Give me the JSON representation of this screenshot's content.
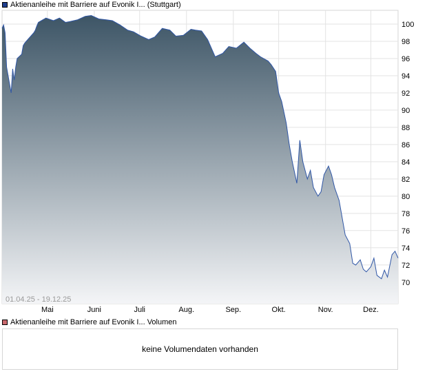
{
  "price_legend": {
    "label": "Aktienanleihe mit Barriere auf Evonik I... (Stuttgart)",
    "color": "#1f3f8f"
  },
  "volume_legend": {
    "label": "Aktienanleihe mit Barriere auf Evonik I... Volumen",
    "color": "#c9696e"
  },
  "volume_message": "keine Volumendaten vorhanden",
  "chart_data": {
    "type": "area",
    "date_range_label": "01.04.25 - 19.12.25",
    "x_start": "2025-04-01",
    "x_end": "2025-12-19",
    "month_labels": [
      "Mai",
      "Juni",
      "Juli",
      "Aug.",
      "Sep.",
      "Okt.",
      "Nov.",
      "Dez."
    ],
    "month_dates": [
      "2025-05-01",
      "2025-06-01",
      "2025-07-01",
      "2025-08-01",
      "2025-09-01",
      "2025-10-01",
      "2025-11-01",
      "2025-12-01"
    ],
    "y_ticks": [
      70,
      72,
      74,
      76,
      78,
      80,
      82,
      84,
      86,
      88,
      90,
      92,
      94,
      96,
      98,
      100
    ],
    "ylim": [
      67.5,
      101.6
    ],
    "grid": true,
    "line_color": "#2f56a6",
    "fill_top_color": "#3d5566",
    "fill_bottom_color": "#f4f5f7",
    "series": [
      {
        "dates": [
          "2025-04-01",
          "2025-04-02",
          "2025-04-03",
          "2025-04-04",
          "2025-04-07",
          "2025-04-08",
          "2025-04-09",
          "2025-04-10",
          "2025-04-11",
          "2025-04-14",
          "2025-04-15",
          "2025-04-16",
          "2025-04-17",
          "2025-04-22",
          "2025-04-23",
          "2025-04-24",
          "2025-04-25",
          "2025-04-28",
          "2025-04-29",
          "2025-04-30",
          "2025-05-05",
          "2025-05-09",
          "2025-05-13",
          "2025-05-16",
          "2025-05-21",
          "2025-05-26",
          "2025-05-30",
          "2025-06-04",
          "2025-06-09",
          "2025-06-13",
          "2025-06-18",
          "2025-06-23",
          "2025-06-27",
          "2025-07-02",
          "2025-07-07",
          "2025-07-11",
          "2025-07-16",
          "2025-07-21",
          "2025-07-25",
          "2025-07-30",
          "2025-08-04",
          "2025-08-07",
          "2025-08-11",
          "2025-08-15",
          "2025-08-20",
          "2025-08-25",
          "2025-08-29",
          "2025-09-03",
          "2025-09-08",
          "2025-09-12",
          "2025-09-16",
          "2025-09-19",
          "2025-09-22",
          "2025-09-24",
          "2025-09-26",
          "2025-09-29",
          "2025-10-01",
          "2025-10-03",
          "2025-10-06",
          "2025-10-08",
          "2025-10-10",
          "2025-10-13",
          "2025-10-15",
          "2025-10-17",
          "2025-10-20",
          "2025-10-22",
          "2025-10-24",
          "2025-10-27",
          "2025-10-29",
          "2025-10-31",
          "2025-11-03",
          "2025-11-05",
          "2025-11-07",
          "2025-11-10",
          "2025-11-12",
          "2025-11-14",
          "2025-11-17",
          "2025-11-19",
          "2025-11-21",
          "2025-11-24",
          "2025-11-26",
          "2025-11-28",
          "2025-12-01",
          "2025-12-03",
          "2025-12-05",
          "2025-12-08",
          "2025-12-10",
          "2025-12-12",
          "2025-12-15",
          "2025-12-17",
          "2025-12-19"
        ],
        "values": [
          99.5,
          99.9,
          99.0,
          95.0,
          92.0,
          94.8,
          93.5,
          95.0,
          96.0,
          96.5,
          97.5,
          97.8,
          98.0,
          99.0,
          99.3,
          99.8,
          100.2,
          100.5,
          100.6,
          100.7,
          100.4,
          100.7,
          100.2,
          100.3,
          100.5,
          100.9,
          101.0,
          100.6,
          100.5,
          100.4,
          99.9,
          99.3,
          99.1,
          98.6,
          98.2,
          98.5,
          99.5,
          99.3,
          98.6,
          98.7,
          99.4,
          99.3,
          99.2,
          98.2,
          96.2,
          96.6,
          97.4,
          97.2,
          97.9,
          97.2,
          96.6,
          96.2,
          95.9,
          95.7,
          95.3,
          94.5,
          92.0,
          91.0,
          88.5,
          86.0,
          84.0,
          81.5,
          86.5,
          84.0,
          82.0,
          83.0,
          81.0,
          80.0,
          80.5,
          82.5,
          83.5,
          82.5,
          81.0,
          79.5,
          77.5,
          75.5,
          74.5,
          72.2,
          72.0,
          72.6,
          71.5,
          71.2,
          71.8,
          72.8,
          70.8,
          70.4,
          71.4,
          70.6,
          73.2,
          73.6,
          72.8
        ]
      }
    ]
  }
}
